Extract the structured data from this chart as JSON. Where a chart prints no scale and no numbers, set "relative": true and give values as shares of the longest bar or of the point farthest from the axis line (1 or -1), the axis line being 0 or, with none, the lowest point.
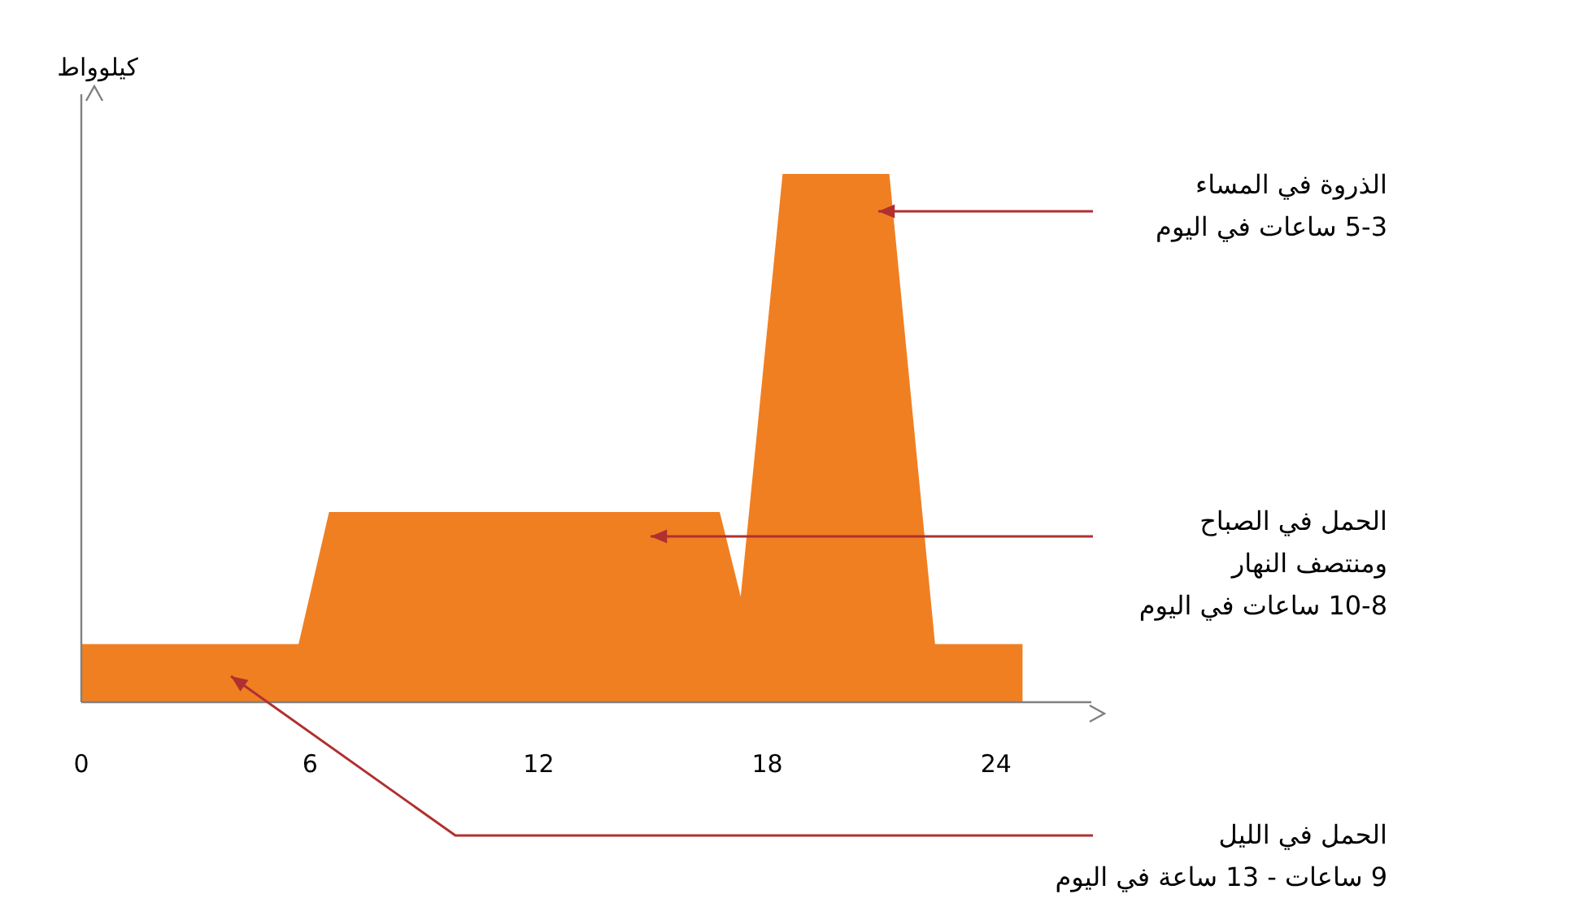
{
  "chart_data": {
    "type": "area",
    "relative": true,
    "ylabel": "كيلوواط",
    "x": [
      0,
      5.7,
      6.5,
      16.75,
      17.3,
      18.4,
      21.2,
      22.4,
      24.7
    ],
    "series": [
      {
        "color": "#f07f22",
        "values": [
          0.11,
          0.11,
          0.36,
          0.36,
          0.2,
          1,
          1,
          0.11,
          0.11
        ]
      }
    ],
    "xlim": [
      0,
      26.5
    ],
    "xticks": [
      0,
      6,
      12,
      18,
      24
    ],
    "grid": false,
    "legend": false,
    "annotations": [
      "الذروة في المساء\n5-3 ساعات في اليوم",
      "الحمل في الصباح\nومنتصف النهار\n10-8 ساعات في اليوم",
      "الحمل في الليل\n9 ساعات - 13 ساعة في اليوم"
    ]
  }
}
